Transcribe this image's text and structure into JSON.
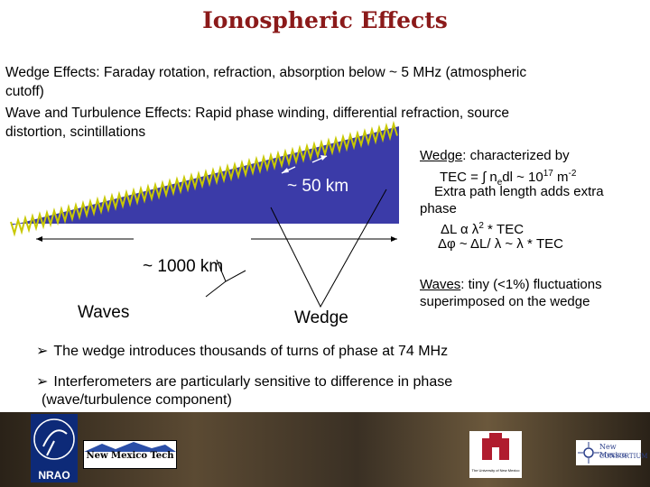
{
  "title": "Ionospheric Effects",
  "intro": {
    "line1": "Wedge Effects: Faraday rotation, refraction, absorption below ~ 5 MHz (atmospheric",
    "line2": "cutoff)",
    "line3": "Wave and Turbulence Effects: Rapid phase winding, differential refraction, source",
    "line4": "distortion, scintillations"
  },
  "diagram": {
    "km50": "~ 50 km",
    "km1000": "~ 1000 km",
    "waves": "Waves",
    "wedge": "Wedge",
    "colors": {
      "wedge_fill": "#3b3ba8",
      "wave_stroke": "#c8c800"
    }
  },
  "right": {
    "wedge_word": "Wedge",
    "wedge_rest": ": characterized by",
    "tec_prefix": "TEC = ∫ n",
    "tec_sub": "e",
    "tec_mid": "dl ~ 10",
    "tec_sup": "17",
    "tec_unit": " m",
    "tec_unit_sup": "-2",
    "extra1": "Extra path length adds extra",
    "extra2": "phase",
    "dl_prefix": "ΔL α λ",
    "dl_sup": "2",
    "dl_rest": " * TEC",
    "dphi": "Δφ ~ ΔL/ λ ~ λ * TEC",
    "waves_word": "Waves",
    "waves_rest": ": tiny (<1%) fluctuations",
    "waves2": "superimposed on the wedge"
  },
  "bullets": {
    "b1": "The wedge introduces thousands of turns of phase at 74 MHz",
    "b2_line1": "Interferometers are particularly sensitive to difference in phase",
    "b2_line2": "(wave/turbulence component)"
  },
  "logos": {
    "nrao": "NRAO",
    "nmt": "New Mexico Tech",
    "unm": "The University of New Mexico",
    "nmc1": "New Mexico",
    "nmc2": "CONSORTIUM"
  }
}
